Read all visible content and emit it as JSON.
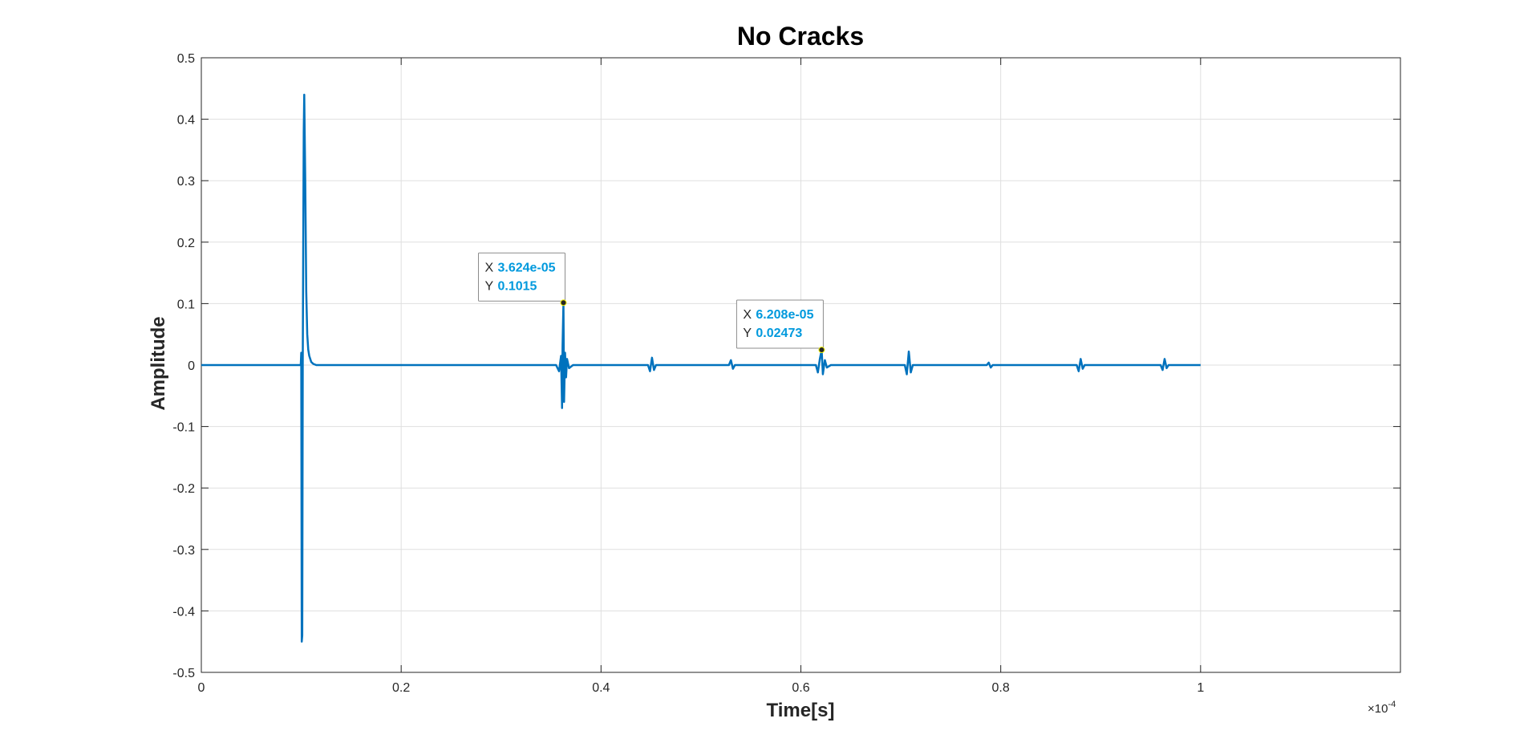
{
  "chart_data": {
    "type": "line",
    "title": "No Cracks",
    "xlabel": "Time[s]",
    "ylabel": "Amplitude",
    "x_exponent_label": "×10",
    "x_exponent_power": "-4",
    "x_multiplier": 0.0001,
    "xlim": [
      0,
      1.2
    ],
    "ylim": [
      -0.5,
      0.5
    ],
    "x_ticks": [
      0,
      0.2,
      0.4,
      0.6,
      0.8,
      1
    ],
    "x_tick_labels": [
      "0",
      "0.2",
      "0.4",
      "0.6",
      "0.8",
      "1"
    ],
    "y_ticks": [
      0.5,
      0.4,
      0.3,
      0.2,
      0.1,
      0,
      -0.1,
      -0.2,
      -0.3,
      -0.4,
      -0.5
    ],
    "y_tick_labels": [
      "0.5",
      "0.4",
      "0.3",
      "0.2",
      "0.1",
      "0",
      "-0.1",
      "-0.2",
      "-0.3",
      "-0.4",
      "-0.5"
    ],
    "grid": true,
    "line_color": "#0072bd",
    "datatip_color": "#0099dd",
    "series": [
      {
        "x": [
          0,
          0.05,
          0.0995,
          0.1,
          0.1005,
          0.101,
          0.1015,
          0.102,
          0.1025,
          0.103,
          0.104,
          0.105,
          0.106,
          0.107,
          0.108,
          0.109,
          0.11,
          0.112,
          0.115,
          0.12,
          0.13,
          0.2,
          0.3,
          0.355,
          0.358,
          0.36,
          0.361,
          0.3615,
          0.362,
          0.3624,
          0.363,
          0.364,
          0.365,
          0.366,
          0.368,
          0.372,
          0.4,
          0.447,
          0.449,
          0.451,
          0.453,
          0.455,
          0.5,
          0.528,
          0.53,
          0.532,
          0.534,
          0.6,
          0.615,
          0.617,
          0.619,
          0.6208,
          0.622,
          0.624,
          0.626,
          0.63,
          0.7,
          0.704,
          0.706,
          0.708,
          0.71,
          0.712,
          0.75,
          0.786,
          0.788,
          0.79,
          0.792,
          0.8,
          0.85,
          0.876,
          0.878,
          0.88,
          0.882,
          0.884,
          0.9,
          0.96,
          0.962,
          0.964,
          0.966,
          0.968,
          1.0
        ],
        "y": [
          0,
          0,
          0,
          0.02,
          -0.45,
          -0.44,
          0.0,
          0.2,
          0.38,
          0.44,
          0.3,
          0.12,
          0.05,
          0.025,
          0.015,
          0.01,
          0.005,
          0.002,
          0.0,
          0.0,
          0.0,
          0.0,
          0.0,
          0.0,
          -0.01,
          0.015,
          -0.07,
          0.03,
          0.07,
          0.1015,
          -0.06,
          0.02,
          -0.02,
          0.01,
          -0.005,
          0.0,
          0.0,
          0.0,
          -0.01,
          0.012,
          -0.008,
          0.0,
          0.0,
          0.0,
          0.008,
          -0.006,
          0.0,
          0.0,
          0.0,
          -0.012,
          0.01,
          0.02473,
          -0.015,
          0.008,
          -0.004,
          0.0,
          0.0,
          0.0,
          -0.015,
          0.022,
          -0.012,
          0.0,
          0.0,
          0.0,
          0.004,
          -0.004,
          0.0,
          0.0,
          0.0,
          0.0,
          -0.01,
          0.01,
          -0.006,
          0.0,
          0.0,
          0.0,
          -0.008,
          0.01,
          -0.005,
          0.0,
          0.0
        ]
      }
    ],
    "datatips": [
      {
        "x": 0.3624,
        "y": 0.1015,
        "x_key": "X",
        "y_key": "Y",
        "x_text": "3.624e-05",
        "y_text": "0.1015"
      },
      {
        "x": 0.6208,
        "y": 0.02473,
        "x_key": "X",
        "y_key": "Y",
        "x_text": "6.208e-05",
        "y_text": "0.02473"
      }
    ]
  }
}
